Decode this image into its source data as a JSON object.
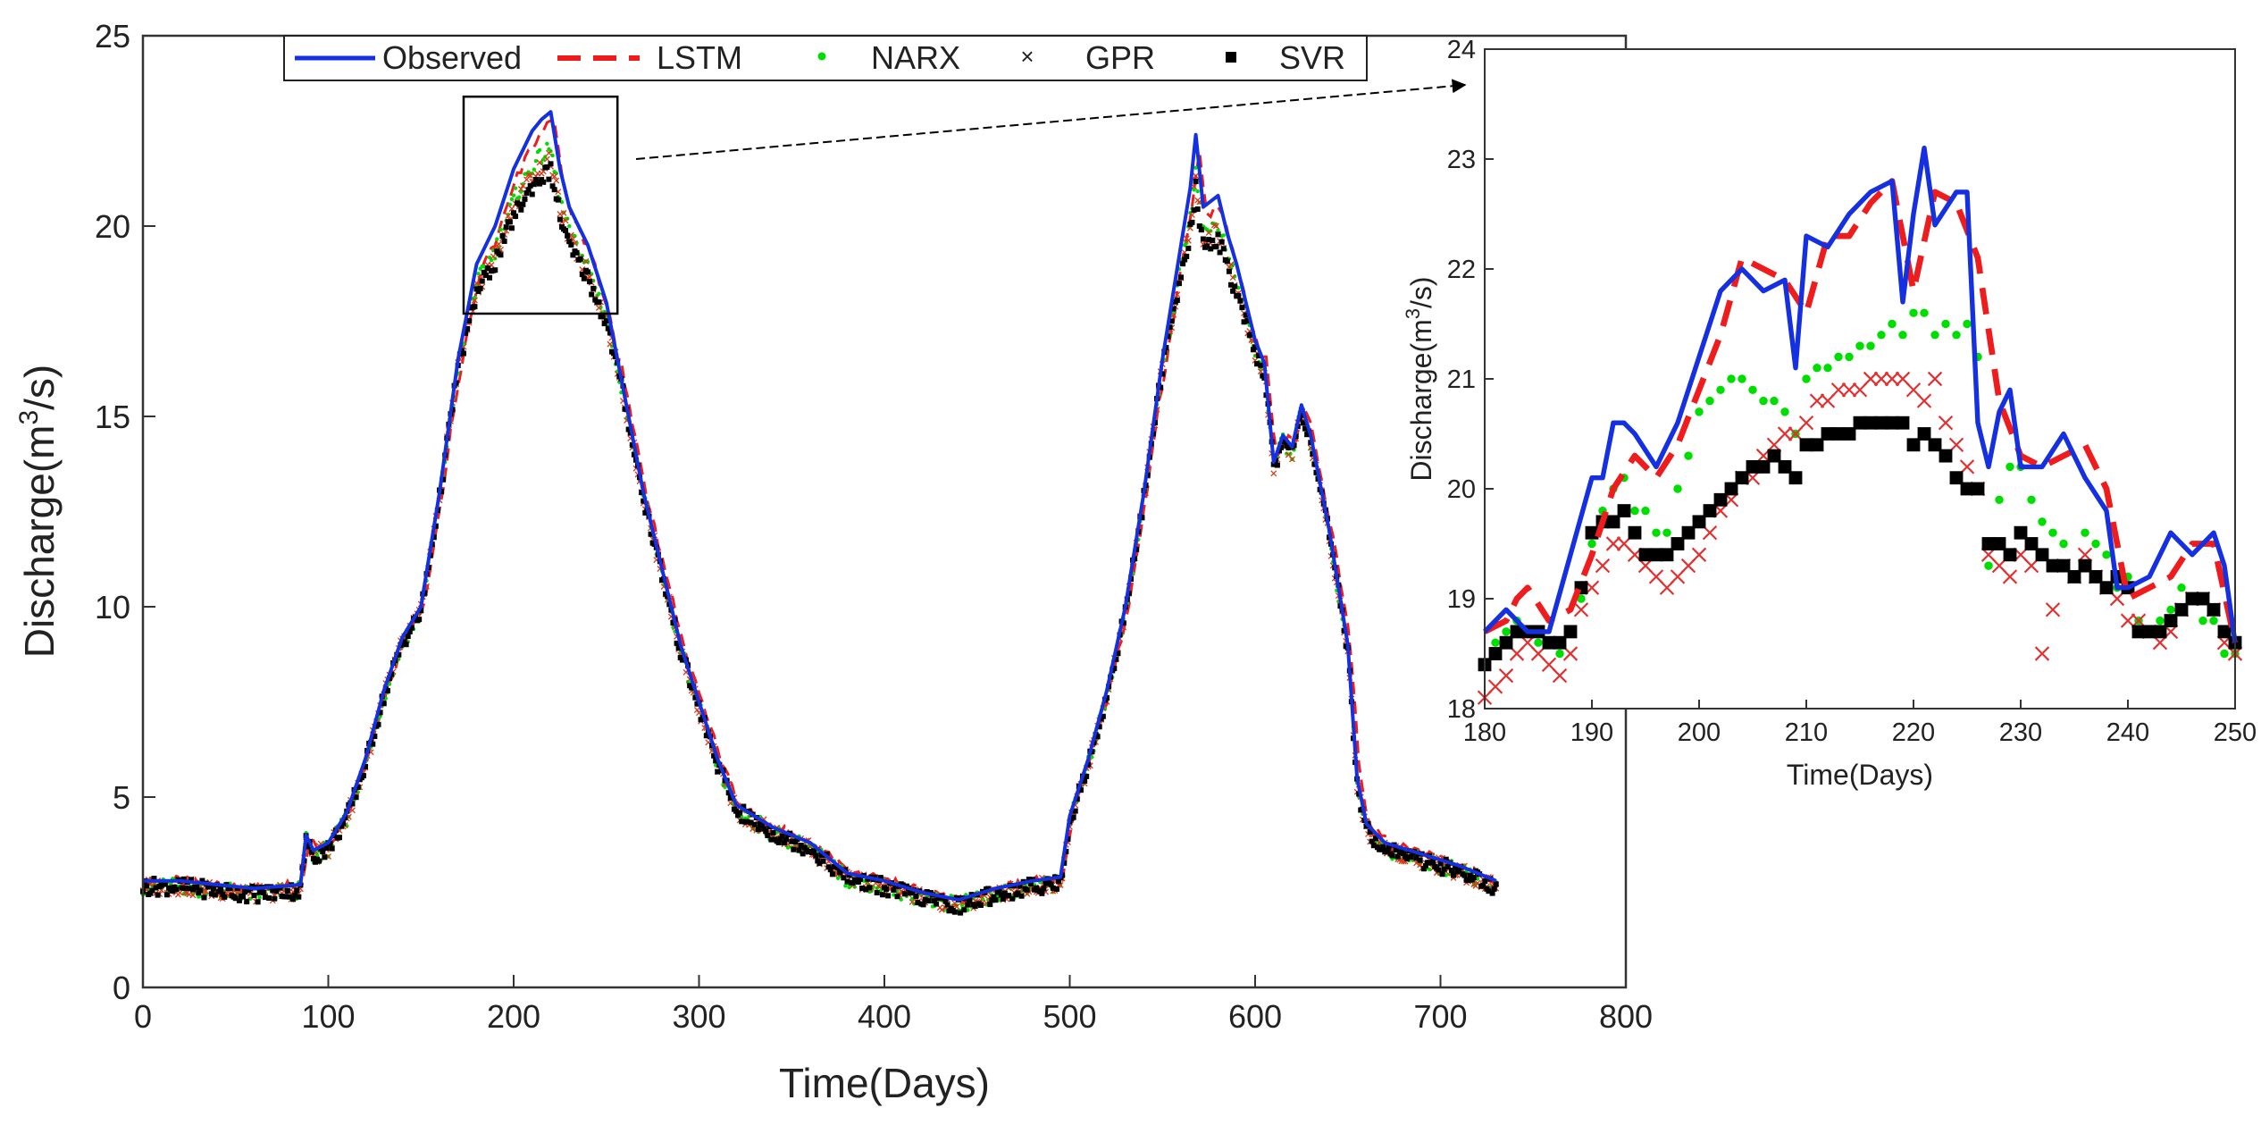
{
  "chart_data": [
    {
      "type": "line",
      "panel": "main",
      "title": "",
      "xlabel": "Time(Days)",
      "ylabel_main": "Discharge(m",
      "ylabel_sup": "3",
      "ylabel_end": "/s)",
      "xlim": [
        0,
        800
      ],
      "ylim": [
        0,
        25
      ],
      "xticks": [
        "0",
        "100",
        "200",
        "300",
        "400",
        "500",
        "600",
        "700",
        "800"
      ],
      "yticks": [
        "0",
        "5",
        "10",
        "15",
        "20",
        "25"
      ],
      "legend": {
        "position": "top",
        "entries": [
          "Observed",
          "LSTM",
          "NARX",
          "GPR",
          "SVR"
        ]
      },
      "zoom_box": {
        "x": [
          173,
          256
        ],
        "y": [
          17.7,
          23.4
        ]
      },
      "series": [
        {
          "name": "Observed",
          "style": "solid",
          "color": "#1530e0",
          "x": [
            0,
            20,
            40,
            60,
            85,
            88,
            92,
            100,
            110,
            120,
            130,
            140,
            150,
            160,
            170,
            180,
            190,
            200,
            210,
            215,
            220,
            225,
            230,
            240,
            250,
            260,
            270,
            280,
            290,
            300,
            310,
            320,
            340,
            360,
            380,
            400,
            420,
            440,
            460,
            480,
            495,
            500,
            510,
            520,
            530,
            540,
            550,
            560,
            565,
            568,
            572,
            580,
            585,
            590,
            600,
            605,
            610,
            615,
            620,
            625,
            630,
            640,
            650,
            655,
            660,
            670,
            690,
            710,
            730
          ],
          "y": [
            2.8,
            2.8,
            2.7,
            2.6,
            2.7,
            4.0,
            3.6,
            3.8,
            4.6,
            6.0,
            7.8,
            9.2,
            10.0,
            13.0,
            16.5,
            19.0,
            20.0,
            21.5,
            22.5,
            22.8,
            23.0,
            21.5,
            20.5,
            19.5,
            18.0,
            15.5,
            13.0,
            11.0,
            9.0,
            7.5,
            6.0,
            4.8,
            4.2,
            3.8,
            3.0,
            2.8,
            2.5,
            2.3,
            2.6,
            2.8,
            2.9,
            4.5,
            6.0,
            7.8,
            10.0,
            13.0,
            16.5,
            19.5,
            21.0,
            22.4,
            20.5,
            20.8,
            19.8,
            19.0,
            17.0,
            16.4,
            13.8,
            14.5,
            14.2,
            15.3,
            14.5,
            12.0,
            9.0,
            5.5,
            4.3,
            3.8,
            3.5,
            3.2,
            2.8
          ]
        }
      ]
    },
    {
      "type": "line",
      "panel": "inset",
      "title": "",
      "xlabel": "Time(Days)",
      "ylabel_main": "Discharge(m",
      "ylabel_sup": "3",
      "ylabel_end": "/s)",
      "xlim": [
        180,
        250
      ],
      "ylim": [
        18,
        24
      ],
      "xticks": [
        "180",
        "190",
        "200",
        "210",
        "220",
        "230",
        "240",
        "250"
      ],
      "yticks": [
        "18",
        "19",
        "20",
        "21",
        "22",
        "23",
        "24"
      ],
      "series": [
        {
          "name": "Observed",
          "style": "solid",
          "color": "#1530e0",
          "x": [
            180,
            182,
            184,
            186,
            188,
            190,
            191,
            192,
            193,
            194,
            196,
            198,
            200,
            202,
            203,
            204,
            206,
            208,
            209,
            210,
            212,
            214,
            216,
            218,
            219,
            220,
            221,
            222,
            224,
            225,
            226,
            227,
            228,
            229,
            230,
            232,
            234,
            236,
            238,
            239,
            240,
            242,
            244,
            246,
            248,
            249,
            250
          ],
          "y": [
            18.7,
            18.9,
            18.7,
            18.7,
            19.4,
            20.1,
            20.1,
            20.6,
            20.6,
            20.5,
            20.2,
            20.6,
            21.2,
            21.8,
            21.9,
            22.0,
            21.8,
            21.9,
            21.1,
            22.3,
            22.2,
            22.5,
            22.7,
            22.8,
            21.7,
            22.5,
            23.1,
            22.4,
            22.7,
            22.7,
            20.6,
            20.2,
            20.7,
            20.9,
            20.2,
            20.2,
            20.5,
            20.1,
            19.8,
            19.1,
            19.1,
            19.2,
            19.6,
            19.4,
            19.6,
            19.3,
            18.6
          ]
        },
        {
          "name": "LSTM",
          "style": "dashed",
          "color": "#ee1c1c",
          "x": [
            180,
            182,
            183,
            184,
            186,
            188,
            190,
            192,
            194,
            196,
            198,
            200,
            202,
            204,
            206,
            208,
            210,
            212,
            214,
            216,
            218,
            220,
            222,
            224,
            226,
            228,
            230,
            232,
            234,
            236,
            238,
            240,
            242,
            244,
            246,
            248,
            250
          ],
          "y": [
            18.7,
            18.8,
            19.0,
            19.1,
            18.8,
            18.9,
            19.4,
            20.0,
            20.3,
            20.1,
            20.4,
            20.9,
            21.4,
            22.1,
            22.0,
            21.9,
            21.6,
            22.3,
            22.3,
            22.6,
            22.8,
            21.8,
            22.7,
            22.6,
            22.1,
            20.8,
            20.3,
            20.2,
            20.3,
            20.4,
            20.0,
            19.0,
            19.1,
            19.2,
            19.5,
            19.5,
            18.6
          ]
        },
        {
          "name": "NARX",
          "style": "dots",
          "color": "#00dd00",
          "x": [
            180,
            181,
            182,
            183,
            184,
            185,
            186,
            187,
            188,
            189,
            190,
            191,
            192,
            193,
            194,
            195,
            196,
            197,
            198,
            199,
            200,
            201,
            202,
            203,
            204,
            205,
            206,
            207,
            208,
            209,
            210,
            211,
            212,
            213,
            214,
            215,
            216,
            217,
            218,
            219,
            220,
            221,
            222,
            223,
            224,
            225,
            226,
            227,
            228,
            229,
            230,
            231,
            232,
            233,
            234,
            235,
            236,
            237,
            238,
            239,
            240,
            241,
            242,
            243,
            244,
            245,
            246,
            247,
            248,
            249,
            250
          ],
          "y": [
            18.4,
            18.6,
            18.7,
            18.8,
            18.7,
            18.6,
            18.6,
            18.5,
            18.7,
            19.0,
            19.5,
            19.8,
            20.0,
            20.1,
            19.8,
            19.8,
            19.6,
            19.6,
            20.0,
            20.3,
            20.7,
            20.8,
            20.9,
            21.0,
            21.0,
            20.9,
            20.8,
            20.8,
            20.7,
            20.5,
            21.0,
            21.1,
            21.1,
            21.2,
            21.2,
            21.3,
            21.3,
            21.4,
            21.5,
            21.4,
            21.6,
            21.6,
            21.4,
            21.5,
            21.4,
            21.5,
            21.2,
            19.3,
            19.9,
            20.2,
            20.2,
            19.9,
            19.7,
            19.6,
            19.5,
            19.2,
            19.6,
            19.5,
            19.4,
            19.1,
            19.2,
            18.8,
            18.7,
            18.8,
            18.9,
            19.1,
            19.0,
            18.8,
            18.8,
            18.5,
            18.5
          ]
        },
        {
          "name": "GPR",
          "style": "cross",
          "color": "#e03030",
          "x": [
            180,
            181,
            182,
            183,
            184,
            185,
            186,
            187,
            188,
            189,
            190,
            191,
            192,
            193,
            194,
            195,
            196,
            197,
            198,
            199,
            200,
            201,
            202,
            203,
            204,
            205,
            206,
            207,
            208,
            209,
            210,
            211,
            212,
            213,
            214,
            215,
            216,
            217,
            218,
            219,
            220,
            221,
            222,
            223,
            224,
            225,
            226,
            227,
            228,
            229,
            230,
            231,
            232,
            233,
            234,
            235,
            236,
            237,
            238,
            239,
            240,
            241,
            242,
            243,
            244,
            245,
            246,
            247,
            248,
            249,
            250
          ],
          "y": [
            18.1,
            18.2,
            18.3,
            18.5,
            18.6,
            18.5,
            18.4,
            18.3,
            18.5,
            18.9,
            19.1,
            19.3,
            19.5,
            19.5,
            19.4,
            19.3,
            19.2,
            19.1,
            19.2,
            19.3,
            19.4,
            19.6,
            19.8,
            19.9,
            20.1,
            20.1,
            20.3,
            20.4,
            20.5,
            20.5,
            20.6,
            20.8,
            20.8,
            20.9,
            20.9,
            20.9,
            21.0,
            21.0,
            21.0,
            21.0,
            20.9,
            20.8,
            21.0,
            20.6,
            20.4,
            20.2,
            20.0,
            19.4,
            19.3,
            19.2,
            19.4,
            19.3,
            18.5,
            18.9,
            19.3,
            19.2,
            19.4,
            19.2,
            19.1,
            19.0,
            18.8,
            18.8,
            18.7,
            18.6,
            18.7,
            18.9,
            19.0,
            19.0,
            18.9,
            18.6,
            18.5
          ]
        },
        {
          "name": "SVR",
          "style": "square",
          "color": "#000000",
          "x": [
            180,
            181,
            182,
            183,
            184,
            185,
            186,
            187,
            188,
            189,
            190,
            191,
            192,
            193,
            194,
            195,
            196,
            197,
            198,
            199,
            200,
            201,
            202,
            203,
            204,
            205,
            206,
            207,
            208,
            209,
            210,
            211,
            212,
            213,
            214,
            215,
            216,
            217,
            218,
            219,
            220,
            221,
            222,
            223,
            224,
            225,
            226,
            227,
            228,
            229,
            230,
            231,
            232,
            233,
            234,
            235,
            236,
            237,
            238,
            239,
            240,
            241,
            242,
            243,
            244,
            245,
            246,
            247,
            248,
            249,
            250
          ],
          "y": [
            18.4,
            18.5,
            18.6,
            18.7,
            18.7,
            18.7,
            18.6,
            18.6,
            18.7,
            19.1,
            19.6,
            19.7,
            19.7,
            19.8,
            19.6,
            19.4,
            19.4,
            19.4,
            19.5,
            19.6,
            19.7,
            19.8,
            19.9,
            20.0,
            20.1,
            20.2,
            20.2,
            20.3,
            20.2,
            20.1,
            20.4,
            20.4,
            20.5,
            20.5,
            20.5,
            20.6,
            20.6,
            20.6,
            20.6,
            20.6,
            20.4,
            20.5,
            20.4,
            20.3,
            20.1,
            20.0,
            20.0,
            19.5,
            19.5,
            19.4,
            19.6,
            19.5,
            19.4,
            19.3,
            19.3,
            19.2,
            19.3,
            19.2,
            19.1,
            19.2,
            19.1,
            18.7,
            18.7,
            18.7,
            18.8,
            18.9,
            19.0,
            19.0,
            18.9,
            18.7,
            18.6
          ]
        }
      ]
    }
  ]
}
